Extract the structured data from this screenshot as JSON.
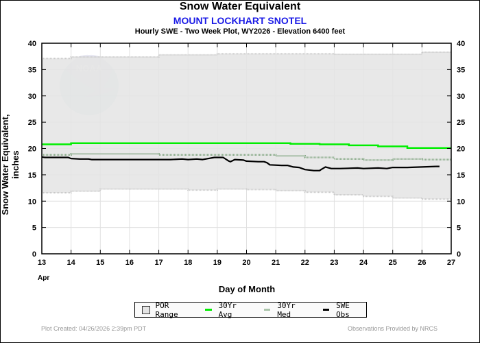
{
  "header": {
    "title": "Snow Water Equivalent",
    "station": "MOUNT LOCKHART SNOTEL",
    "subtitle": "Hourly SWE - Two Week Plot, WY2026 -  Elevation 6400 feet"
  },
  "footer": {
    "created": "Plot Created: 04/26/2026 2:39pm PDT",
    "provider": "Observations Provided by NRCS"
  },
  "legend": {
    "items": [
      {
        "label": "POR Range",
        "kind": "box",
        "color": "#e4e4e4"
      },
      {
        "label": "30Yr Avg",
        "kind": "line",
        "color": "#00ee00"
      },
      {
        "label": "30Yr Med",
        "kind": "line",
        "color": "#99bb99"
      },
      {
        "label": "SWE Obs",
        "kind": "line",
        "color": "#000000"
      }
    ]
  },
  "chart_data": {
    "type": "line",
    "title": "Snow Water Equivalent",
    "subtitle": "MOUNT LOCKHART SNOTEL",
    "xlabel": "Day of Month",
    "xlabel_month": "Apr",
    "ylabel": "Snow Water Equivalent, inches",
    "xlim": [
      13,
      27
    ],
    "ylim": [
      0,
      40
    ],
    "x_ticks": [
      13,
      14,
      15,
      16,
      17,
      18,
      19,
      20,
      21,
      22,
      23,
      24,
      25,
      26,
      27
    ],
    "y_ticks": [
      0,
      5,
      10,
      15,
      20,
      25,
      30,
      35,
      40
    ],
    "grid": true,
    "legend_position": "bottom",
    "colors": {
      "por_fill": "#e4e4e4",
      "por_edge": "#c8c8c8",
      "avg": "#00ee00",
      "med": "#88aa88",
      "obs": "#000000",
      "grid": "#e0e0e0"
    },
    "series": [
      {
        "name": "POR Max",
        "x": [
          13,
          14,
          14,
          15,
          15,
          17,
          17,
          19,
          19,
          23,
          23,
          26,
          26,
          27
        ],
        "values": [
          37.1,
          37.1,
          37.4,
          37.4,
          37.4,
          37.4,
          37.8,
          37.8,
          38.0,
          38.0,
          37.9,
          37.9,
          38.3,
          38.3
        ]
      },
      {
        "name": "POR Min",
        "x": [
          13,
          14,
          14,
          15,
          15,
          16,
          16,
          18,
          18,
          19,
          19,
          20,
          20,
          21,
          21,
          22,
          22,
          23,
          23,
          24,
          24,
          25,
          25,
          26,
          26,
          27
        ],
        "values": [
          11.6,
          11.6,
          11.9,
          11.9,
          12.3,
          12.3,
          12.3,
          12.3,
          12.1,
          12.1,
          12.3,
          12.3,
          12.2,
          12.2,
          12.0,
          12.0,
          11.7,
          11.7,
          11.2,
          11.2,
          10.9,
          10.9,
          10.6,
          10.6,
          10.4,
          10.4
        ]
      },
      {
        "name": "30Yr Avg",
        "x": [
          13,
          14,
          14,
          21.5,
          21.5,
          22.5,
          22.5,
          23.5,
          23.5,
          24.5,
          24.5,
          25.5,
          25.5,
          27
        ],
        "values": [
          20.8,
          20.8,
          21.0,
          21.0,
          20.9,
          20.9,
          20.8,
          20.8,
          20.6,
          20.6,
          20.4,
          20.4,
          20.1,
          20.1
        ]
      },
      {
        "name": "30Yr Med",
        "x": [
          13,
          14,
          14,
          17,
          17,
          21,
          21,
          22,
          22,
          23,
          23,
          24,
          24,
          25,
          25,
          26,
          26,
          27
        ],
        "values": [
          18.8,
          18.8,
          19.0,
          19.0,
          18.8,
          18.8,
          18.6,
          18.6,
          18.3,
          18.3,
          18.0,
          18.0,
          17.8,
          17.8,
          18.0,
          18.0,
          17.9,
          17.9
        ]
      },
      {
        "name": "SWE Obs",
        "x": [
          13,
          13.1,
          13.9,
          14.0,
          14.3,
          14.6,
          14.7,
          15.5,
          16.5,
          17.4,
          17.8,
          18.0,
          18.3,
          18.5,
          18.7,
          18.9,
          19.0,
          19.2,
          19.4,
          19.45,
          19.6,
          19.9,
          20.0,
          20.4,
          20.6,
          20.7,
          20.8,
          21.2,
          21.4,
          21.6,
          21.8,
          22.0,
          22.3,
          22.5,
          22.55,
          22.7,
          22.9,
          23.2,
          23.8,
          24.0,
          24.5,
          24.8,
          25.0,
          25.5,
          26.0,
          26.5,
          26.6
        ],
        "values": [
          18.4,
          18.3,
          18.3,
          18.1,
          18.0,
          18.0,
          17.9,
          17.9,
          17.9,
          17.9,
          18.0,
          17.9,
          18.0,
          17.9,
          18.1,
          18.3,
          18.3,
          18.3,
          17.6,
          17.5,
          17.9,
          17.8,
          17.6,
          17.5,
          17.5,
          17.3,
          16.9,
          16.8,
          16.8,
          16.5,
          16.4,
          16.0,
          15.8,
          15.8,
          16.0,
          16.5,
          16.2,
          16.2,
          16.3,
          16.2,
          16.3,
          16.2,
          16.4,
          16.4,
          16.5,
          16.6,
          16.6
        ]
      }
    ]
  }
}
